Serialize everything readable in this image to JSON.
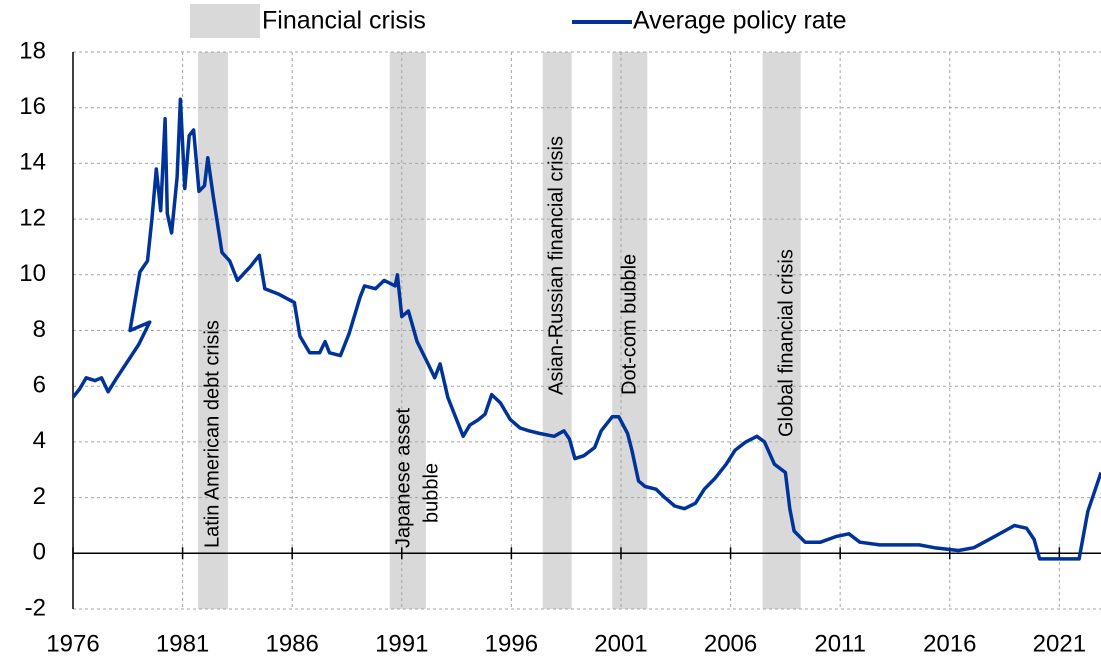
{
  "chart_data": {
    "type": "line",
    "xlim": [
      1976,
      2022.9
    ],
    "ylim": [
      -2,
      18
    ],
    "xticks": [
      1976,
      1981,
      1986,
      1991,
      1996,
      2001,
      2006,
      2011,
      2016,
      2021
    ],
    "yticks": [
      -2,
      0,
      2,
      4,
      6,
      8,
      10,
      12,
      14,
      16,
      18
    ],
    "grid": true,
    "crises": {
      "name": "Financial crisis",
      "color": "#d9d9d9",
      "periods": [
        {
          "start": 1981.7,
          "end": 1983.07,
          "label_lines": [
            "Latin American debt crisis"
          ]
        },
        {
          "start": 1990.45,
          "end": 1992.1,
          "label_lines": [
            "Japanese asset",
            "bubble"
          ]
        },
        {
          "start": 1997.43,
          "end": 1998.75,
          "label_lines": [
            "Asian-Russian financial crisis"
          ]
        },
        {
          "start": 2000.6,
          "end": 2002.2,
          "label_lines": [
            "Dot-com bubble"
          ]
        },
        {
          "start": 2007.46,
          "end": 2009.2,
          "label_lines": [
            "Global financial crisis"
          ]
        }
      ]
    },
    "series": [
      {
        "name": "Average policy rate",
        "color": "#003399",
        "x": [
          1976.0,
          1976.3,
          1976.6,
          1977.0,
          1977.3,
          1977.6,
          1978.0,
          1978.5,
          1979.0,
          1979.5,
          1978.6,
          1979.05,
          1979.4,
          1979.6,
          1979.8,
          1980.0,
          1980.2,
          1980.3,
          1980.5,
          1980.75,
          1980.9,
          1981.1,
          1981.3,
          1981.5,
          1981.75,
          1982.0,
          1982.15,
          1982.4,
          1982.8,
          1983.15,
          1983.5,
          1984.1,
          1984.5,
          1984.75,
          1985.4,
          1986.1,
          1986.35,
          1986.8,
          1987.25,
          1987.5,
          1987.7,
          1988.2,
          1988.6,
          1989.1,
          1989.3,
          1989.8,
          1990.2,
          1990.7,
          1990.8,
          1991.0,
          1991.3,
          1991.7,
          1992.2,
          1992.5,
          1992.75,
          1993.1,
          1993.4,
          1993.8,
          1994.1,
          1994.5,
          1994.8,
          1995.1,
          1995.5,
          1995.95,
          1996.4,
          1996.8,
          1997.3,
          1997.95,
          1998.4,
          1998.65,
          1998.9,
          1999.3,
          1999.8,
          2000.1,
          2000.6,
          2000.9,
          2001.3,
          2001.5,
          2001.8,
          2002.1,
          2002.6,
          2003.0,
          2003.45,
          2003.9,
          2004.4,
          2004.8,
          2005.3,
          2005.8,
          2006.2,
          2006.7,
          2007.2,
          2007.55,
          2008.0,
          2008.5,
          2008.7,
          2008.9,
          2009.4,
          2010.1,
          2010.8,
          2011.4,
          2011.9,
          2012.8,
          2013.7,
          2014.6,
          2015.3,
          2016.4,
          2017.1,
          2017.8,
          2018.5,
          2018.95,
          2019.5,
          2019.85,
          2020.1,
          2021.0,
          2021.9,
          2022.3,
          2022.6,
          2022.9
        ],
        "values": [
          5.6,
          5.9,
          6.3,
          6.2,
          6.3,
          5.8,
          6.3,
          6.9,
          7.5,
          8.3,
          8.0,
          10.1,
          10.5,
          12.0,
          13.8,
          12.3,
          15.6,
          12.2,
          11.5,
          13.5,
          16.3,
          13.1,
          15.0,
          15.2,
          13.0,
          13.2,
          14.2,
          12.8,
          10.8,
          10.5,
          9.8,
          10.3,
          10.7,
          9.5,
          9.3,
          9.0,
          7.8,
          7.2,
          7.2,
          7.6,
          7.2,
          7.1,
          7.9,
          9.2,
          9.6,
          9.5,
          9.8,
          9.6,
          10.0,
          8.5,
          8.7,
          7.6,
          6.8,
          6.3,
          6.8,
          5.6,
          5.0,
          4.2,
          4.6,
          4.8,
          5.0,
          5.7,
          5.4,
          4.8,
          4.5,
          4.4,
          4.3,
          4.2,
          4.4,
          4.1,
          3.4,
          3.5,
          3.8,
          4.4,
          4.9,
          4.9,
          4.3,
          3.7,
          2.6,
          2.4,
          2.3,
          2.0,
          1.7,
          1.6,
          1.8,
          2.3,
          2.7,
          3.2,
          3.7,
          4.0,
          4.2,
          4.0,
          3.2,
          2.9,
          1.6,
          0.8,
          0.4,
          0.4,
          0.6,
          0.7,
          0.4,
          0.3,
          0.3,
          0.3,
          0.2,
          0.1,
          0.2,
          0.5,
          0.8,
          1.0,
          0.9,
          0.5,
          -0.2,
          -0.2,
          -0.2,
          1.5,
          2.2,
          2.9
        ]
      }
    ]
  }
}
